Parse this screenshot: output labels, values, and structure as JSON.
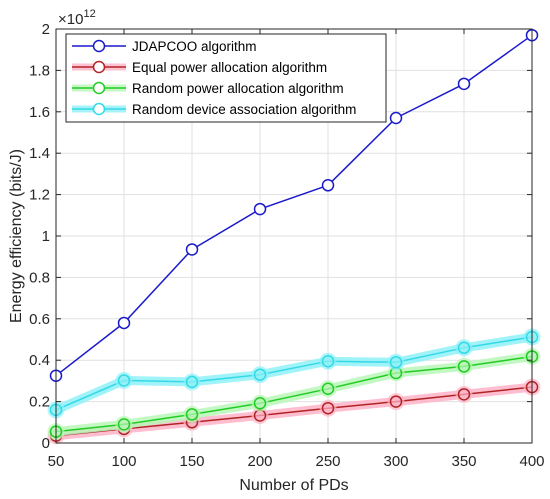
{
  "chart_data": {
    "type": "line",
    "xlabel": "Number of PDs",
    "ylabel": "Energy efficiency (bits/J)",
    "y_exponent_base": "×10",
    "y_exponent_power": "12",
    "xlim": [
      50,
      400
    ],
    "ylim": [
      0,
      2
    ],
    "x_ticks": [
      "50",
      "100",
      "150",
      "200",
      "250",
      "300",
      "350",
      "400"
    ],
    "y_ticks": [
      "0",
      "0.2",
      "0.4",
      "0.6",
      "0.8",
      "1",
      "1.2",
      "1.4",
      "1.6",
      "1.8",
      "2"
    ],
    "grid": true,
    "legend_position": "top-left",
    "x": [
      50,
      100,
      150,
      200,
      250,
      300,
      350,
      400
    ],
    "series": [
      {
        "name": "JDAPCOO  algorithm",
        "color": "#1a1acc",
        "glow": null,
        "values": [
          0.325,
          0.58,
          0.935,
          1.13,
          1.245,
          1.57,
          1.735,
          1.97
        ]
      },
      {
        "name": "Equal power allocation algorithm",
        "color": "#b02424",
        "glow": "#ffb3c8",
        "values": [
          0.035,
          0.068,
          0.1,
          0.133,
          0.168,
          0.2,
          0.235,
          0.27
        ]
      },
      {
        "name": "Random power allocation algorithm",
        "color": "#22cc22",
        "glow": "#b8f7b8",
        "values": [
          0.055,
          0.09,
          0.138,
          0.192,
          0.262,
          0.338,
          0.37,
          0.418
        ]
      },
      {
        "name": "Random device association algorithm",
        "color": "#33d9e8",
        "glow": "#8ff1f7",
        "values": [
          0.16,
          0.302,
          0.295,
          0.33,
          0.395,
          0.39,
          0.46,
          0.512
        ]
      }
    ]
  }
}
